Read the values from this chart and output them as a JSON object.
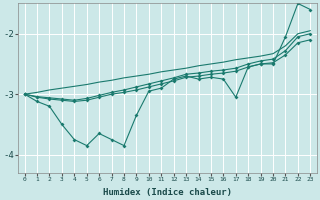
{
  "xlabel": "Humidex (Indice chaleur)",
  "background_color": "#cce8e8",
  "grid_color": "#ffffff",
  "line_color": "#1a7a6e",
  "x": [
    0,
    1,
    2,
    3,
    4,
    5,
    6,
    7,
    8,
    9,
    10,
    11,
    12,
    13,
    14,
    15,
    16,
    17,
    18,
    19,
    20,
    21,
    22,
    23
  ],
  "line_noisy": [
    -3.0,
    -3.12,
    -3.2,
    -3.5,
    -3.75,
    -3.85,
    -3.65,
    -3.75,
    -3.85,
    -3.35,
    -2.95,
    -2.9,
    -2.75,
    -2.7,
    -2.75,
    -2.72,
    -2.75,
    -3.05,
    -2.55,
    -2.5,
    -2.5,
    -2.05,
    -1.5,
    -1.6
  ],
  "line_smooth1": [
    -3.0,
    -3.05,
    -3.08,
    -3.1,
    -3.12,
    -3.1,
    -3.05,
    -3.0,
    -2.97,
    -2.93,
    -2.88,
    -2.83,
    -2.78,
    -2.72,
    -2.7,
    -2.67,
    -2.65,
    -2.62,
    -2.55,
    -2.5,
    -2.48,
    -2.35,
    -2.15,
    -2.1
  ],
  "line_smooth2": [
    -3.0,
    -3.04,
    -3.06,
    -3.08,
    -3.1,
    -3.07,
    -3.02,
    -2.97,
    -2.93,
    -2.88,
    -2.83,
    -2.78,
    -2.73,
    -2.67,
    -2.65,
    -2.62,
    -2.6,
    -2.57,
    -2.5,
    -2.45,
    -2.42,
    -2.28,
    -2.05,
    -2.0
  ],
  "line_trend": [
    -3.0,
    -2.97,
    -2.93,
    -2.9,
    -2.87,
    -2.84,
    -2.8,
    -2.77,
    -2.73,
    -2.7,
    -2.67,
    -2.63,
    -2.6,
    -2.57,
    -2.53,
    -2.5,
    -2.47,
    -2.43,
    -2.4,
    -2.37,
    -2.33,
    -2.2,
    -2.0,
    -1.95
  ],
  "ylim": [
    -4.3,
    -1.5
  ],
  "xlim": [
    -0.5,
    23.5
  ],
  "yticks": [
    -4,
    -3,
    -2
  ],
  "xticks": [
    0,
    1,
    2,
    3,
    4,
    5,
    6,
    7,
    8,
    9,
    10,
    11,
    12,
    13,
    14,
    15,
    16,
    17,
    18,
    19,
    20,
    21,
    22,
    23
  ]
}
